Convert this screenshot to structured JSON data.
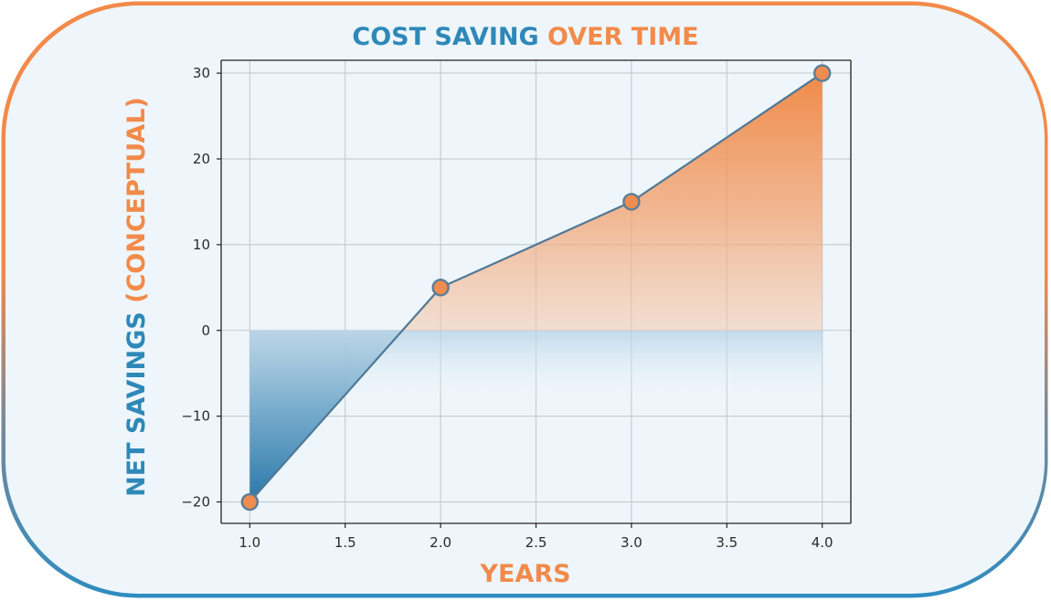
{
  "chart_data": {
    "type": "area",
    "title_part1": "COST SAVING",
    "title_part2": "OVER TIME",
    "xlabel": "YEARS",
    "ylabel_part1": "NET SAVINGS",
    "ylabel_part2": "(CONCEPTUAL)",
    "x": [
      1.0,
      2.0,
      3.0,
      4.0
    ],
    "y": [
      -20,
      5,
      15,
      30
    ],
    "xlim": [
      0.85,
      4.15
    ],
    "ylim": [
      -22.5,
      31.5
    ],
    "xticks": [
      "1.0",
      "1.5",
      "2.0",
      "2.5",
      "3.0",
      "3.5",
      "4.0"
    ],
    "yticks": [
      "30",
      "20",
      "10",
      "0",
      "−10",
      "−20"
    ],
    "grid": true,
    "colors": {
      "blue": "#2e88b8",
      "orange": "#f28a4a",
      "line": "#4f7896",
      "border_blue": "#2e8cc0",
      "border_orange": "#f28a4a",
      "panel": "#eef6fb"
    }
  }
}
